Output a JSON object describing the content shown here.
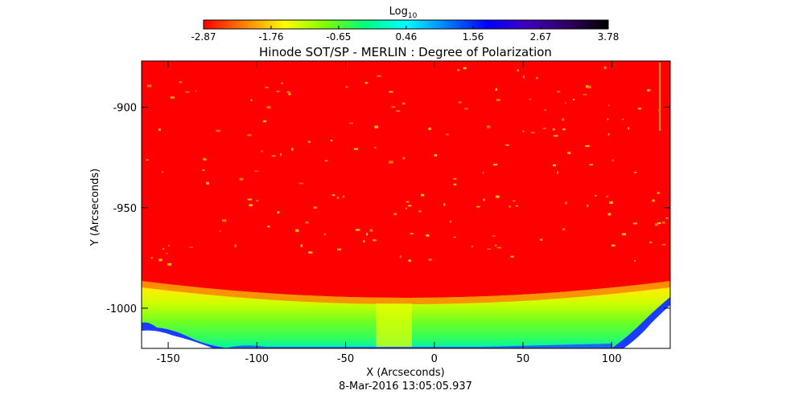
{
  "chart_data": {
    "type": "heatmap",
    "title": "Hinode SOT/SP - MERLIN : Degree of Polarization",
    "xlabel": "X (Arcseconds)",
    "ylabel": "Y (Arcseconds)",
    "timestamp": "8-Mar-2016 13:05:05.937",
    "xlim": [
      -165,
      133
    ],
    "ylim": [
      -1020,
      -877
    ],
    "x_ticks": [
      -150,
      -100,
      -50,
      0,
      50,
      100
    ],
    "x_tick_labels": [
      "-150",
      "-100",
      "-50",
      "0",
      "50",
      "100"
    ],
    "y_ticks": [
      -1000,
      -950,
      -900
    ],
    "y_tick_labels": [
      "-1000",
      "-950",
      "-900"
    ],
    "colorbar": {
      "label_base": "Log",
      "label_sub": "10",
      "range": [
        -2.87,
        3.78
      ],
      "ticks": [
        -2.87,
        -1.76,
        -0.65,
        0.46,
        1.56,
        2.67,
        3.78
      ],
      "tick_labels": [
        "-2.87",
        "-1.76",
        "-0.65",
        "0.46",
        "1.56",
        "2.67",
        "3.78"
      ],
      "colormap": [
        "#ff0000",
        "#ff8000",
        "#ffff00",
        "#80ff00",
        "#00ff80",
        "#00ffff",
        "#0080ff",
        "#0000ff",
        "#4000c0",
        "#300060",
        "#000000"
      ]
    },
    "regions": {
      "disk_value_log10": -2.87,
      "limb_value_log10": 0.2,
      "limb_y_center": -993,
      "limb_y_edges": -983,
      "off_limb": "no data (white)"
    }
  }
}
